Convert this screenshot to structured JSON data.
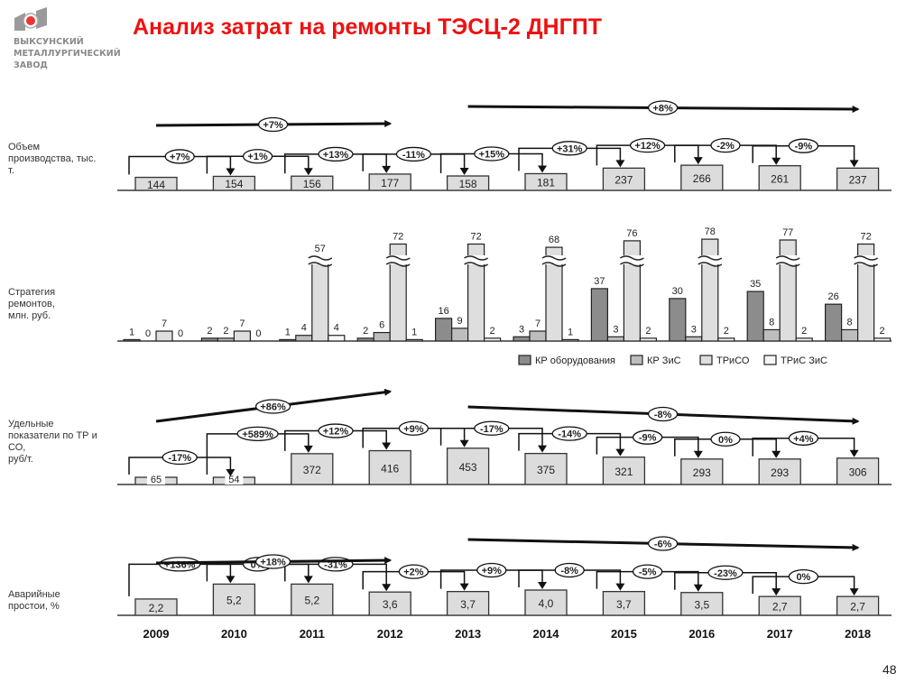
{
  "header": {
    "title": "Анализ затрат на ремонты ТЭСЦ-2 ДНГПТ",
    "logo_lines": [
      "ВЫКСУНСКИЙ",
      "МЕТАЛЛУРГИЧЕСКИЙ",
      "ЗАВОД"
    ]
  },
  "page_number": "48",
  "colors": {
    "title": "#ee1111",
    "kr_equipment": "#8c8c8c",
    "kr_zis": "#bdbdbd",
    "triso": "#dedede",
    "tris_zis": "#f6f6f6",
    "box_fill": "#dcdcdc"
  },
  "chart_data": [
    {
      "type": "bar",
      "title": "Объем производства, тыс. т.",
      "row_label": [
        "Объем",
        "производства, тыс.",
        "т."
      ],
      "categories": [
        "2009",
        "2010",
        "2011",
        "2012",
        "2013",
        "2014",
        "2015",
        "2016",
        "2017",
        "2018"
      ],
      "values": [
        144,
        154,
        156,
        177,
        158,
        181,
        237,
        266,
        261,
        237
      ],
      "labels": [
        "144",
        "154",
        "156",
        "177",
        "158",
        "181",
        "237",
        "266",
        "261",
        "237"
      ],
      "changes": [
        "+7%",
        "+1%",
        "+13%",
        "-11%",
        "+15%",
        "+31%",
        "+12%",
        "-2%",
        "-9%"
      ],
      "trends": [
        {
          "from": "2009",
          "to": "2012",
          "label": "+7%"
        },
        {
          "from": "2013",
          "to": "2018",
          "label": "+8%"
        }
      ]
    },
    {
      "type": "bar",
      "title": "Стратегия ремонтов, млн. руб.",
      "row_label": [
        "Стратегия",
        "ремонтов,",
        "млн. руб."
      ],
      "categories": [
        "2009",
        "2010",
        "2011",
        "2012",
        "2013",
        "2014",
        "2015",
        "2016",
        "2017",
        "2018"
      ],
      "series": [
        {
          "name": "КР оборудования",
          "values": [
            1,
            2,
            1,
            2,
            16,
            3,
            37,
            30,
            35,
            26
          ]
        },
        {
          "name": "КР ЗиС",
          "values": [
            0,
            2,
            4,
            6,
            9,
            7,
            3,
            3,
            8,
            8
          ]
        },
        {
          "name": "ТРиСО",
          "values": [
            7,
            7,
            57,
            72,
            72,
            68,
            76,
            78,
            77,
            72
          ]
        },
        {
          "name": "ТРиС ЗиС",
          "values": [
            0,
            0,
            4,
            1,
            2,
            1,
            2,
            2,
            2,
            2
          ]
        }
      ],
      "axis_break": "ТРиСО bars from 2011 onward are truncated with break marks",
      "legend": [
        "КР оборудования",
        "КР ЗиС",
        "ТРиСО",
        "ТРиС ЗиС"
      ],
      "legend_position": "bottom-right"
    },
    {
      "type": "bar",
      "title": "Удельные показатели по ТР и СО, руб/т.",
      "row_label": [
        "Удельные",
        "показатели по  ТР и",
        "СО,",
        "руб/т."
      ],
      "categories": [
        "2009",
        "2010",
        "2011",
        "2012",
        "2013",
        "2014",
        "2015",
        "2016",
        "2017",
        "2018"
      ],
      "values": [
        65,
        54,
        372,
        416,
        453,
        375,
        321,
        293,
        293,
        306
      ],
      "labels": [
        "65",
        "54",
        "372",
        "416",
        "453",
        "375",
        "321",
        "293",
        "293",
        "306"
      ],
      "changes": [
        "-17%",
        "+589%",
        "+12%",
        "+9%",
        "-17%",
        "-14%",
        "-9%",
        "0%",
        "+4%"
      ],
      "trends": [
        {
          "from": "2009",
          "to": "2012",
          "label": "+86%"
        },
        {
          "from": "2013",
          "to": "2018",
          "label": "-8%"
        }
      ]
    },
    {
      "type": "bar",
      "title": "Аварийные простои, %",
      "row_label": [
        "Аварийные",
        "простои, %"
      ],
      "categories": [
        "2009",
        "2010",
        "2011",
        "2012",
        "2013",
        "2014",
        "2015",
        "2016",
        "2017",
        "2018"
      ],
      "values": [
        2.2,
        5.2,
        5.2,
        3.6,
        3.7,
        4.0,
        3.7,
        3.5,
        2.7,
        2.7
      ],
      "labels": [
        "2,2",
        "5,2",
        "5,2",
        "3,6",
        "3,7",
        "4,0",
        "3,7",
        "3,5",
        "2,7",
        "2,7"
      ],
      "changes": [
        "+136%",
        "0%",
        "-31%",
        "+2%",
        "+9%",
        "-8%",
        "-5%",
        "-23%",
        "0%"
      ],
      "trends": [
        {
          "from": "2009",
          "to": "2012",
          "label": "+18%"
        },
        {
          "from": "2013",
          "to": "2018",
          "label": "-6%"
        }
      ]
    }
  ],
  "years": [
    "2009",
    "2010",
    "2011",
    "2012",
    "2013",
    "2014",
    "2015",
    "2016",
    "2017",
    "2018"
  ]
}
